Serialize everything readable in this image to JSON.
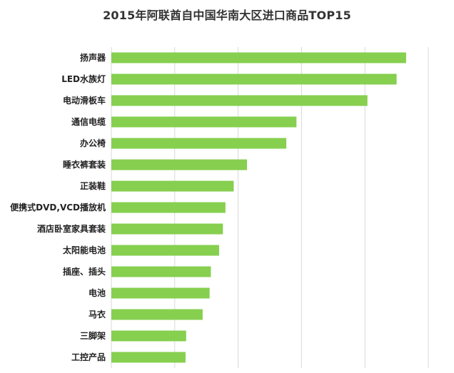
{
  "chart_data": {
    "type": "bar",
    "orientation": "horizontal",
    "title": "2015年阿联酋自中国华南大区进口商品TOP15",
    "xlabel": "",
    "ylabel": "",
    "categories": [
      "扬声器",
      "LED水族灯",
      "电动滑板车",
      "通信电缆",
      "办公椅",
      "睡衣裤套装",
      "正装鞋",
      "便携式DVD,VCD播放机",
      "酒店卧室家具套装",
      "太阳能电池",
      "插座、插头",
      "电池",
      "马衣",
      "三脚架",
      "工控产品"
    ],
    "values": [
      4.65,
      4.5,
      4.04,
      2.92,
      2.76,
      2.14,
      1.93,
      1.8,
      1.76,
      1.7,
      1.57,
      1.55,
      1.44,
      1.18,
      1.17
    ],
    "xlim": [
      0,
      5
    ],
    "grid": true,
    "legend": "none",
    "tick_labels_shown": false,
    "bar_color": "#86cf4f",
    "grid_color": "#d9d9d9"
  }
}
